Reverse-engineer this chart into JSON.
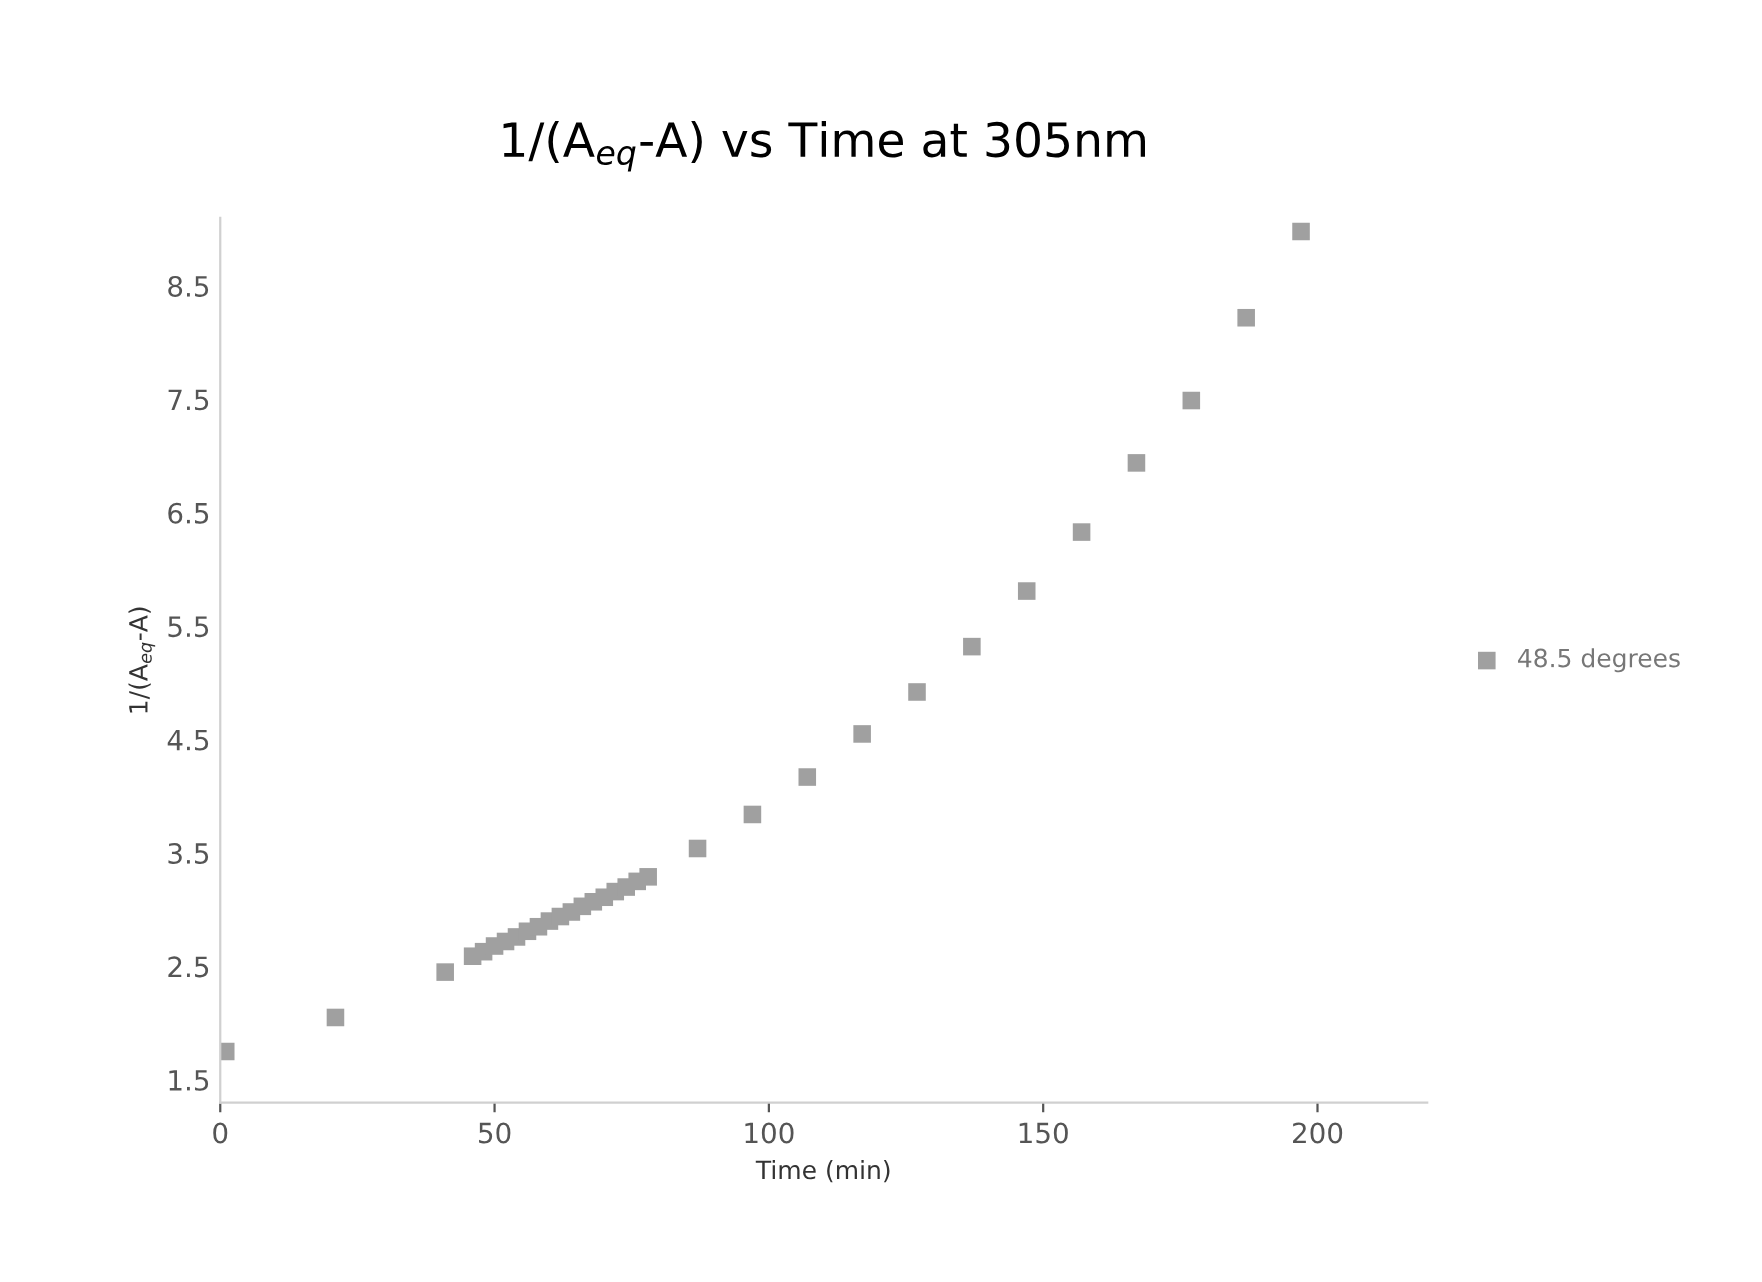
{
  "chart_data": {
    "type": "scatter",
    "title": "1/(A$_{eq}$-A) vs Time at 305nm",
    "xlabel": "Time (min)",
    "ylabel": "1/(A$_{eq}$-A)",
    "series": [
      {
        "name": "48.5 degrees",
        "color": "#a0a0a0",
        "marker": "square",
        "x": [
          1,
          21,
          41,
          46,
          48,
          50,
          52,
          54,
          56,
          58,
          60,
          62,
          64,
          66,
          68,
          70,
          72,
          74,
          76,
          78,
          87,
          97,
          107,
          117,
          127,
          137,
          147,
          157,
          167,
          177,
          187,
          197
        ],
        "values": [
          1.75,
          2.05,
          2.45,
          2.59,
          2.63,
          2.68,
          2.72,
          2.76,
          2.81,
          2.85,
          2.9,
          2.94,
          2.98,
          3.03,
          3.07,
          3.11,
          3.16,
          3.2,
          3.25,
          3.29,
          3.54,
          3.84,
          4.17,
          4.55,
          4.92,
          5.32,
          5.81,
          6.33,
          6.94,
          7.49,
          8.22,
          8.98
        ]
      }
    ],
    "xlim": [
      0,
      220
    ],
    "xticks": [
      0,
      50,
      100,
      150,
      200
    ],
    "ylim": [
      1.3,
      9.1
    ],
    "yticks": [
      1.5,
      2.5,
      3.5,
      4.5,
      5.5,
      6.5,
      7.5,
      8.5
    ],
    "grid": false,
    "legend": "right"
  }
}
